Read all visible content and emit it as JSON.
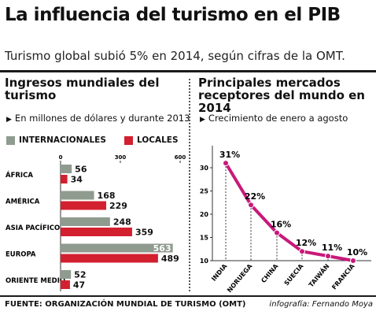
{
  "title": "La influencia del turismo en el PIB",
  "subtitle": "Turismo global subió 5% en 2014, según cifras de la OMT.",
  "colors": {
    "gray": "#8f9b8f",
    "red": "#d2202f",
    "line": "#c8197a"
  },
  "left": {
    "heading_1": "Ingresos mundiales del",
    "heading_2": "turismo",
    "note": "En millones de dólares y durante 2013",
    "legend_internacionales": "INTERNACIONALES",
    "legend_locales": "LOCALES"
  },
  "right": {
    "heading_1": "Principales mercados",
    "heading_2": "receptores del mundo en 2014",
    "note": "Crecimiento de enero a agosto"
  },
  "source": "FUENTE: ORGANIZACIÓN MUNDIAL DE TURISMO (OMT)",
  "credit": "infografía: Fernando Moya",
  "chart_data": [
    {
      "type": "bar",
      "title": "Ingresos mundiales del turismo",
      "unit": "En millones de dólares y durante 2013",
      "orientation": "horizontal",
      "categories": [
        "ÁFRICA",
        "AMÉRICA",
        "ASIA PACÍFICO",
        "EUROPA",
        "ORIENTE MEDIO"
      ],
      "series": [
        {
          "name": "INTERNACIONALES",
          "color": "#8f9b8f",
          "values": [
            56,
            168,
            248,
            563,
            52
          ]
        },
        {
          "name": "LOCALES",
          "color": "#d2202f",
          "values": [
            34,
            229,
            359,
            489,
            47
          ]
        }
      ],
      "xticks": [
        0,
        300,
        600
      ],
      "xlim": [
        0,
        600
      ],
      "grid": false,
      "legend": "top"
    },
    {
      "type": "line",
      "title": "Principales mercados receptores del mundo en 2014",
      "unit": "Crecimiento de enero a agosto",
      "categories": [
        "INDIA",
        "NORUEGA",
        "CHINA",
        "SUECIA",
        "TAIWÁN",
        "FRANCIA"
      ],
      "values": [
        31,
        22,
        16,
        12,
        11,
        10
      ],
      "labels": [
        "31%",
        "22%",
        "16%",
        "12%",
        "11%",
        "10%"
      ],
      "yticks": [
        10,
        15,
        20,
        25,
        30
      ],
      "ylim": [
        10,
        33
      ],
      "grid": false,
      "color": "#c8197a"
    }
  ]
}
